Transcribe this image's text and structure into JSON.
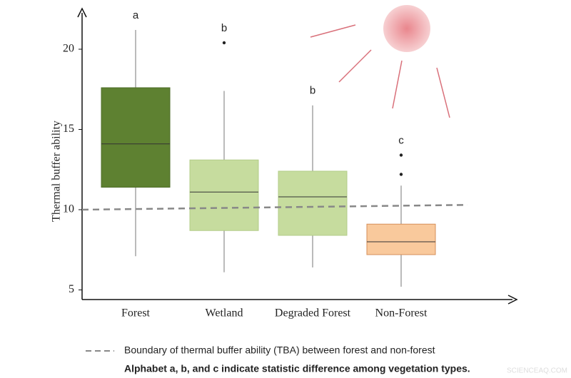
{
  "chart_data": {
    "type": "box",
    "y_label": "Thermal buffer ability",
    "ylim": [
      4.4,
      22.4
    ],
    "yticks": [
      5,
      10,
      15,
      20
    ],
    "categories": [
      "Forest",
      "Wetland",
      "Degraded Forest",
      "Non-Forest"
    ],
    "boxes": [
      {
        "min": 7.1,
        "q1": 11.4,
        "median": 14.1,
        "q3": 17.6,
        "max": 21.2,
        "outliers": [],
        "letter": "a",
        "color": "#5e8131",
        "stroke": "#4e6c28"
      },
      {
        "min": 6.1,
        "q1": 8.7,
        "median": 11.1,
        "q3": 13.1,
        "max": 17.4,
        "outliers": [
          20.4
        ],
        "letter": "b",
        "color": "#c6dc9e",
        "stroke": "#b3cc88"
      },
      {
        "min": 6.4,
        "q1": 8.4,
        "median": 10.8,
        "q3": 12.4,
        "max": 16.5,
        "outliers": [],
        "letter": "b",
        "color": "#c6dc9e",
        "stroke": "#b3cc88"
      },
      {
        "min": 5.2,
        "q1": 7.2,
        "median": 8.0,
        "q3": 9.1,
        "max": 11.5,
        "outliers": [
          12.2,
          13.4
        ],
        "letter": "c",
        "color": "#f9c99c",
        "stroke": "#d58f5a"
      }
    ],
    "reference_line": {
      "start": 10.0,
      "end": 10.3,
      "color": "#888888"
    },
    "legend": [
      "Boundary of thermal buffer ability (TBA) between forest and non-forest",
      "Alphabet a, b, and c indicate statistic difference among vegetation types."
    ],
    "watermark": "SCIENCEAQ.COM"
  }
}
